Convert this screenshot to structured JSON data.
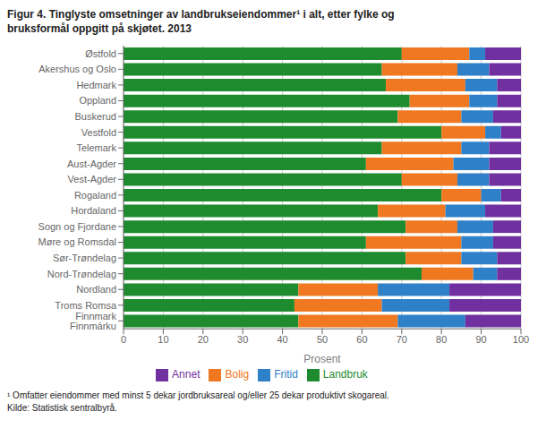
{
  "chart_data": {
    "type": "bar",
    "orientation": "horizontal",
    "stacked": true,
    "title": "Figur 4. Tinglyste omsetninger av landbrukseiendommer¹ i alt, etter fylke og\nbruksformål oppgitt på skjøtet. 2013",
    "categories": [
      "Østfold",
      "Akershus og Oslo",
      "Hedmark",
      "Oppland",
      "Buskerud",
      "Vestfold",
      "Telemark",
      "Aust-Agder",
      "Vest-Agder",
      "Rogaland",
      "Hordaland",
      "Sogn og Fjordane",
      "Møre og Romsdal",
      "Sør-Trøndelag",
      "Nord-Trøndelag",
      "Nordland",
      "Troms Romsa",
      "Finnmark Finnmárku"
    ],
    "series": [
      {
        "name": "Landbruk",
        "color": "#1e8b2e",
        "values": [
          70,
          65,
          66,
          72,
          69,
          80,
          65,
          61,
          70,
          80,
          64,
          71,
          61,
          71,
          75,
          44,
          43,
          44
        ]
      },
      {
        "name": "Bolig",
        "color": "#f07820",
        "values": [
          17,
          19,
          20,
          15,
          16,
          11,
          20,
          22,
          14,
          10,
          17,
          13,
          24,
          14,
          13,
          20,
          22,
          25
        ]
      },
      {
        "name": "Fritid",
        "color": "#2e80c8",
        "values": [
          4,
          8,
          8,
          7,
          8,
          4,
          7,
          9,
          8,
          5,
          10,
          9,
          8,
          9,
          6,
          18,
          17,
          17
        ]
      },
      {
        "name": "Annet",
        "color": "#7030a0",
        "values": [
          9,
          8,
          6,
          6,
          7,
          5,
          8,
          8,
          8,
          5,
          9,
          7,
          7,
          6,
          6,
          18,
          18,
          14
        ]
      }
    ],
    "xlabel": "Prosent",
    "xlim": [
      0,
      100
    ],
    "xticks": [
      0,
      10,
      20,
      30,
      40,
      50,
      60,
      70,
      80,
      90,
      100
    ],
    "grid": true,
    "legend": "bottom",
    "annotations": [
      "¹ Omfatter eiendommer med minst 5 dekar jordbruksareal og/eller 25 dekar produktivt skogareal.",
      "Kilde: Statistisk sentralbyrå."
    ]
  }
}
